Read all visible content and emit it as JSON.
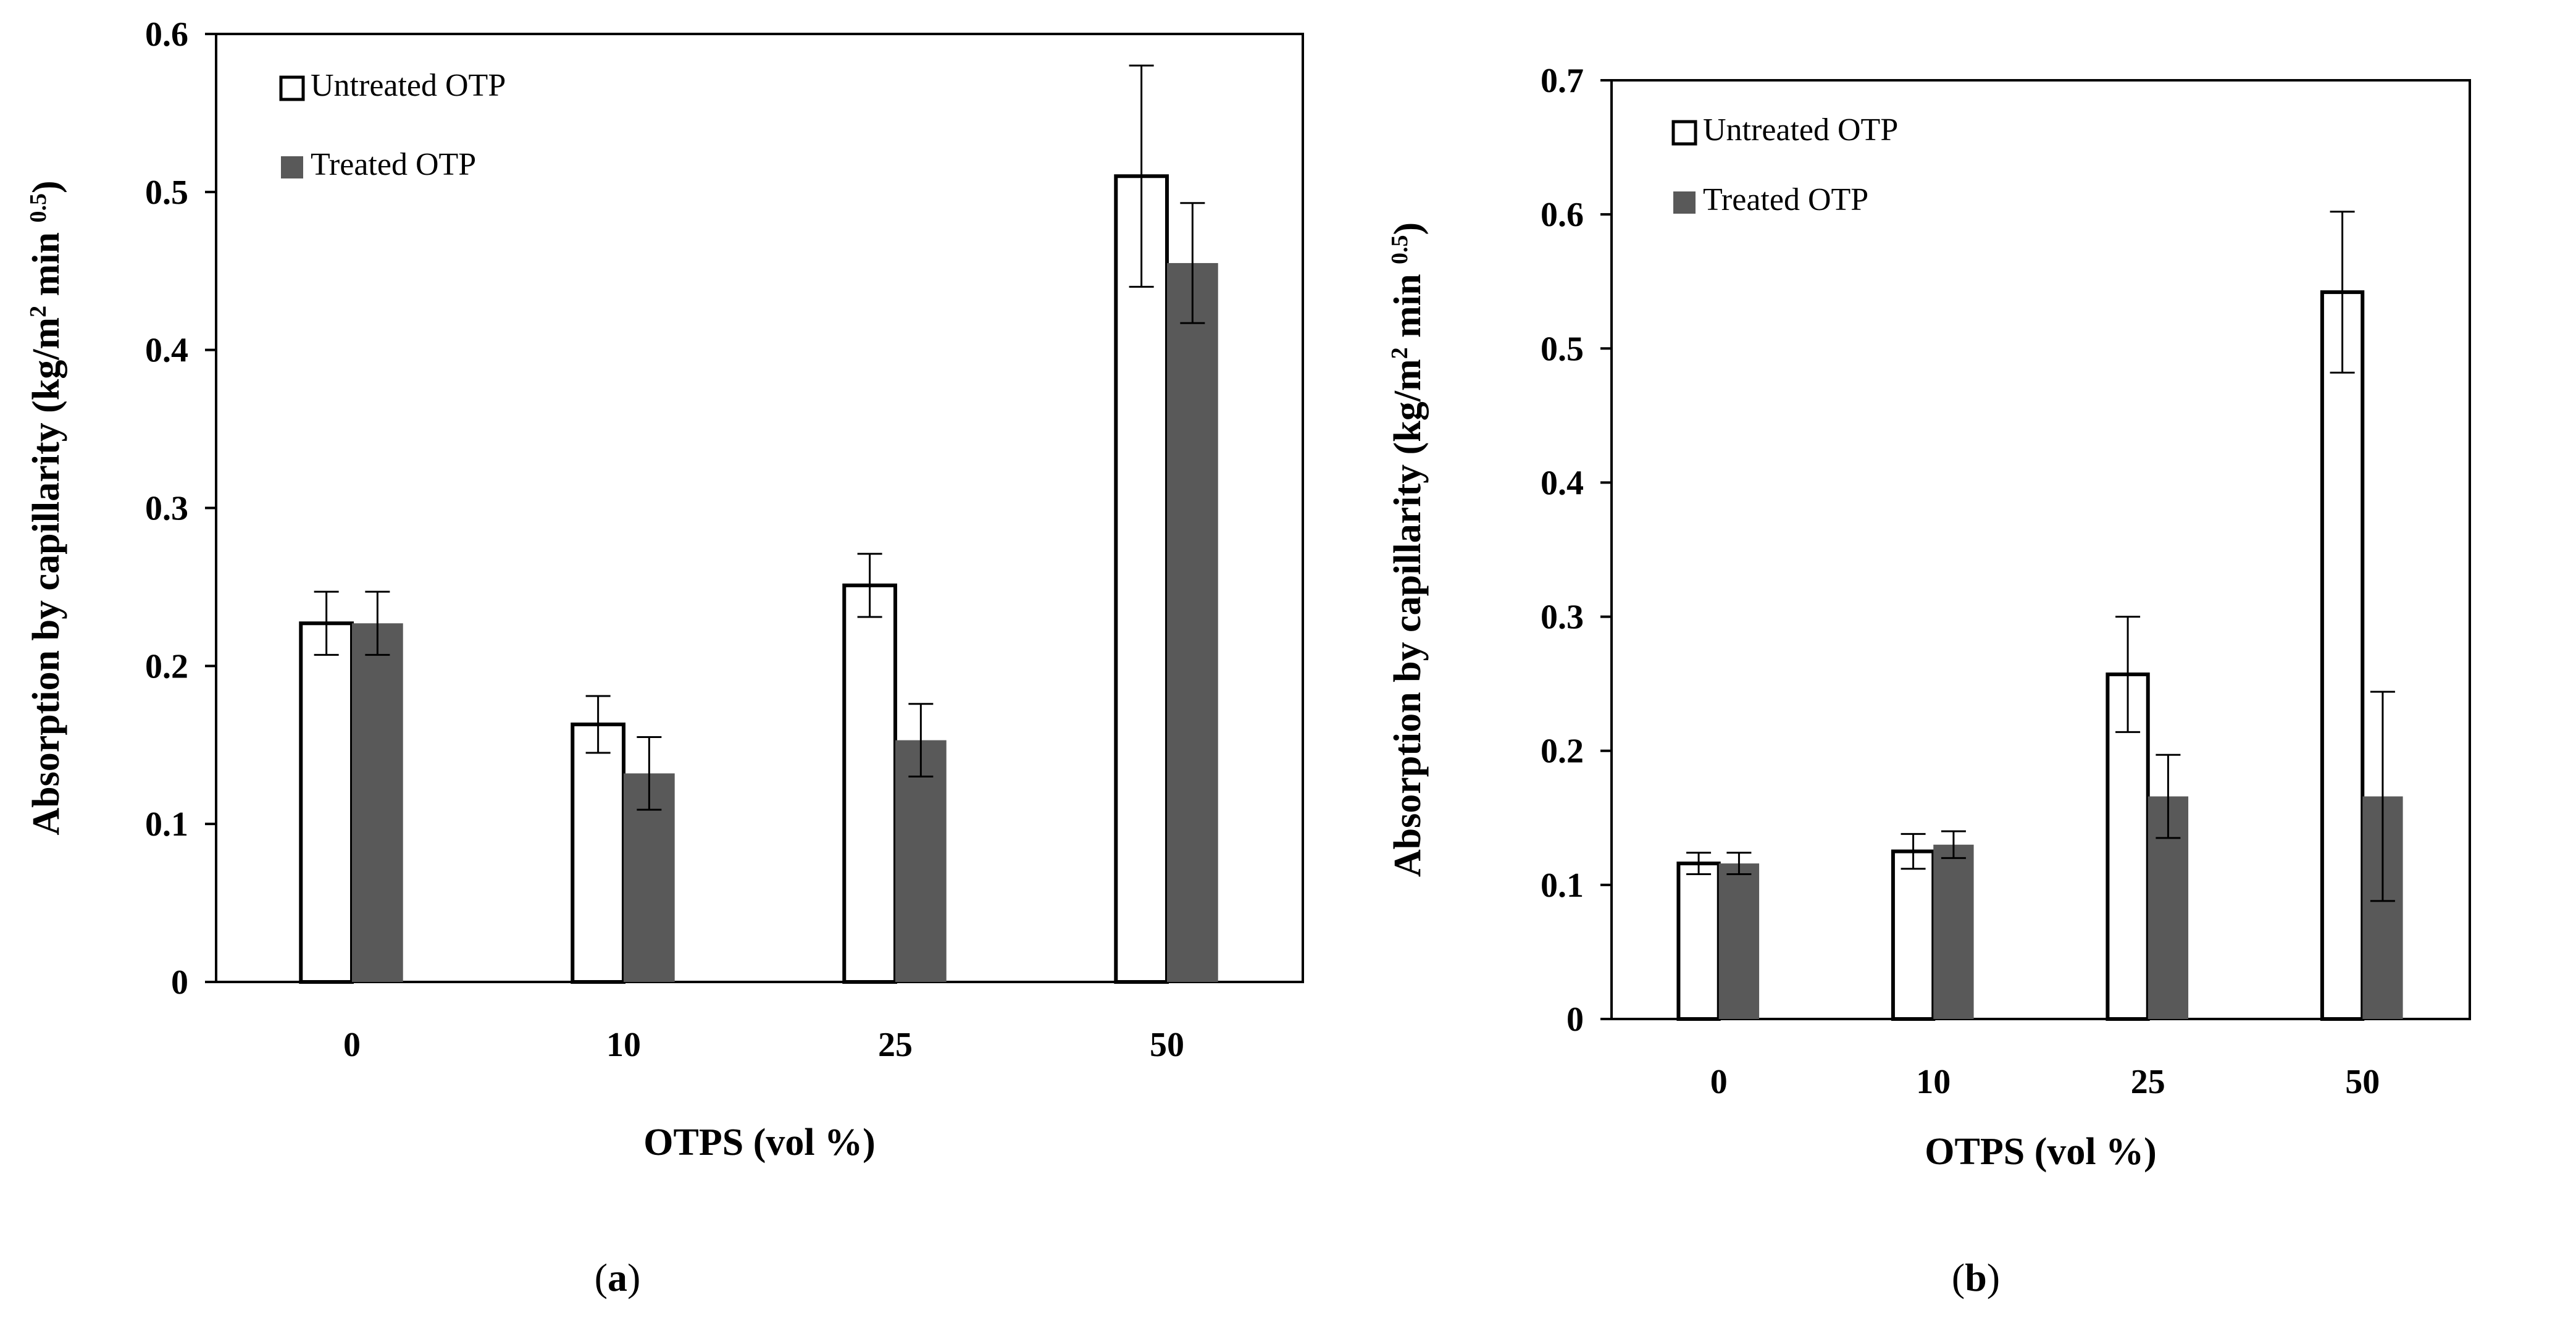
{
  "colors": {
    "untreated_fill": "#ffffff",
    "treated_fill": "#595959",
    "stroke": "#000000"
  },
  "charts": [
    {
      "caption_open": "(",
      "caption_letter": "a",
      "caption_close": ")",
      "chart_data": {
        "type": "bar",
        "categories": [
          "0",
          "10",
          "25",
          "50"
        ],
        "series": [
          {
            "name": "Untreated OTP",
            "values": [
              0.227,
              0.163,
              0.251,
              0.51
            ],
            "errors": [
              0.02,
              0.018,
              0.02,
              0.07
            ]
          },
          {
            "name": "Treated OTP",
            "values": [
              0.227,
              0.132,
              0.153,
              0.455
            ],
            "errors": [
              0.02,
              0.023,
              0.023,
              0.038
            ]
          }
        ],
        "xlabel": "OTPS (vol %)",
        "ylabel_main": "Absorption by capillarity (kg/m",
        "ylabel_sup2": "2",
        "ylabel_mid": " min ",
        "ylabel_sup": "0.5",
        "ylabel_end": ")",
        "ylim": [
          0,
          0.6
        ],
        "yticks": [
          "0",
          "0.1",
          "0.2",
          "0.3",
          "0.4",
          "0.5",
          "0.6"
        ],
        "legend_position": "top-left",
        "grid": false
      }
    },
    {
      "caption_open": "(",
      "caption_letter": "b",
      "caption_close": ")",
      "chart_data": {
        "type": "bar",
        "categories": [
          "0",
          "10",
          "25",
          "50"
        ],
        "series": [
          {
            "name": "Untreated OTP",
            "values": [
              0.116,
              0.125,
              0.257,
              0.542
            ],
            "errors": [
              0.008,
              0.013,
              0.043,
              0.06
            ]
          },
          {
            "name": "Treated OTP",
            "values": [
              0.116,
              0.13,
              0.166,
              0.166
            ],
            "errors": [
              0.008,
              0.01,
              0.031,
              0.078
            ]
          }
        ],
        "xlabel": "OTPS (vol %)",
        "ylabel_main": "Absorption by capillarity (kg/m",
        "ylabel_sup2": "2",
        "ylabel_mid": " min ",
        "ylabel_sup": "0.5",
        "ylabel_end": ")",
        "ylim": [
          0,
          0.7
        ],
        "yticks": [
          "0",
          "0.1",
          "0.2",
          "0.3",
          "0.4",
          "0.5",
          "0.6",
          "0.7"
        ],
        "legend_position": "top-left",
        "grid": false
      }
    }
  ]
}
